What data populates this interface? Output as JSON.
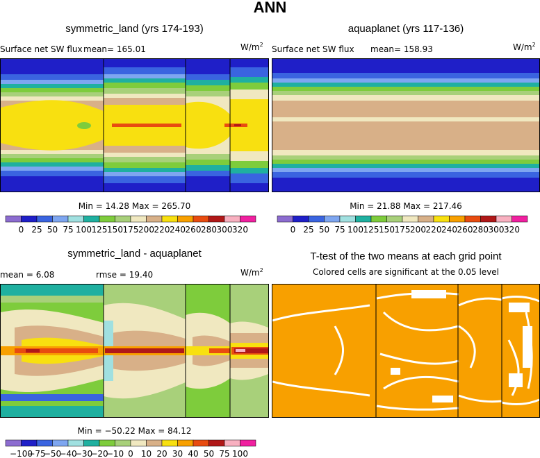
{
  "figure_title": "ANN",
  "panels": {
    "p1": {
      "title": "symmetric_land (yrs 174-193)",
      "left": "Surface net SW flux",
      "mean": "mean= 165.01",
      "units_base": "W/m",
      "units_exp": "2",
      "minmax": "Min =  14.28 Max = 265.70"
    },
    "p2": {
      "title": "aquaplanet (yrs 117-136)",
      "left": "Surface net SW flux",
      "mean": "mean= 158.93",
      "units_base": "W/m",
      "units_exp": "2",
      "minmax": "Min =  21.88 Max = 217.46"
    },
    "p3": {
      "title": "symmetric_land - aquaplanet",
      "mean": "mean =    6.08",
      "rmse": "rmse =  19.40",
      "units_base": "W/m",
      "units_exp": "2",
      "minmax": "Min = −50.22 Max =  84.12"
    },
    "p4": {
      "title": "T-test of the two means at each grid point",
      "subtitle": "Colored cells are significant at the 0.05 level"
    }
  },
  "colorbars": {
    "field": {
      "colors": [
        "#8c6cd0",
        "#1f1fc8",
        "#3a64e0",
        "#7ea6f0",
        "#a0e0e0",
        "#1fb0a0",
        "#7ecc3c",
        "#a8d07a",
        "#f0e8c0",
        "#d8b088",
        "#f8e010",
        "#f8a000",
        "#e84c10",
        "#b01818",
        "#f8b0c0",
        "#f020a0"
      ],
      "labels": [
        "0",
        "25",
        "50",
        "75",
        "100",
        "125",
        "150",
        "175",
        "200",
        "220",
        "240",
        "260",
        "280",
        "300",
        "320"
      ]
    },
    "diff": {
      "colors": [
        "#8c6cd0",
        "#1f1fc8",
        "#3a64e0",
        "#7ea6f0",
        "#a0e0e0",
        "#1fb0a0",
        "#7ecc3c",
        "#a8d07a",
        "#f0e8c0",
        "#d8b088",
        "#f8e010",
        "#f8a000",
        "#e84c10",
        "#b01818",
        "#f8b0c0",
        "#f020a0"
      ],
      "labels": [
        "−100",
        "−75",
        "−50",
        "−40",
        "−30",
        "−20",
        "−10",
        "0",
        "10",
        "20",
        "30",
        "40",
        "50",
        "75",
        "100"
      ]
    }
  },
  "map_colors": {
    "deep_blue": "#1f1fc8",
    "blue": "#3a64e0",
    "light_blue": "#7ea6f0",
    "cyan": "#a0e0e0",
    "teal": "#1fb0a0",
    "green": "#7ecc3c",
    "olive": "#a8d07a",
    "cream": "#f0e8c0",
    "tan": "#d8b088",
    "yellow": "#f8e010",
    "orange": "#f8a000",
    "red": "#e84c10",
    "dark_red": "#b01818",
    "pink": "#f8b0c0",
    "ttest_orange": "#f8a000"
  }
}
